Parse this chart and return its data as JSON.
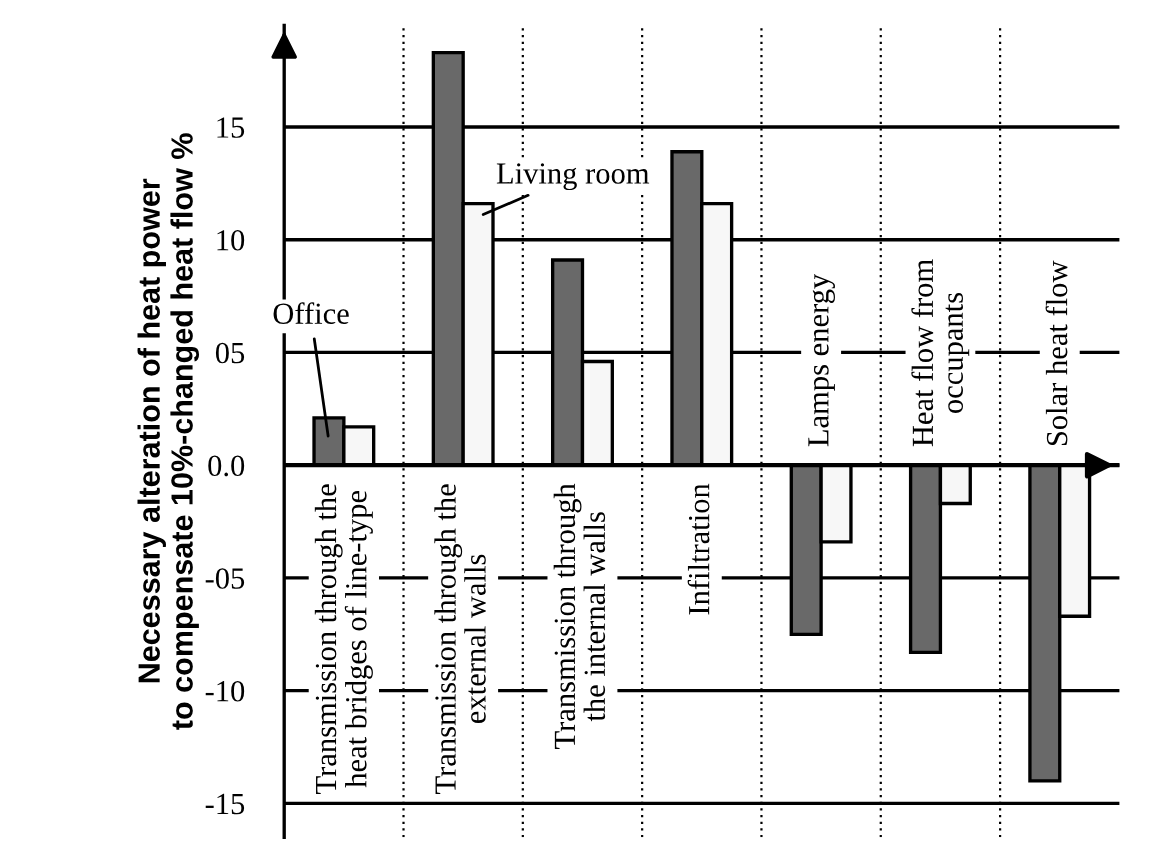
{
  "chart_data": {
    "type": "bar",
    "ylabel": "Necessary alteration of heat power\nto compensate 10%-changed heat flow %",
    "categories": [
      "Transmission through the\nheat bridges of line-type",
      "Transmission through the\nexternal walls",
      "Transmission through\nthe internal walls",
      "Infiltration",
      "Lamps energy",
      "Heat flow from\noccupants",
      "Solar heat flow"
    ],
    "series": [
      {
        "name": "Office",
        "color": "#696969",
        "values": [
          2.1,
          18.3,
          9.1,
          13.9,
          -7.5,
          -8.3,
          -14.0
        ]
      },
      {
        "name": "Living room",
        "color": "#f7f7f7",
        "values": [
          1.7,
          11.6,
          4.6,
          11.6,
          -3.4,
          -1.7,
          -6.7
        ]
      }
    ],
    "ylim": [
      -16.5,
      19.5
    ],
    "yticks": [
      15,
      10,
      {
        "value": 5,
        "label": "05"
      },
      {
        "value": 0,
        "label": "0.0"
      },
      {
        "value": -5,
        "label": "-05"
      },
      -10,
      -15
    ],
    "grid": "y",
    "legend": "top left"
  }
}
